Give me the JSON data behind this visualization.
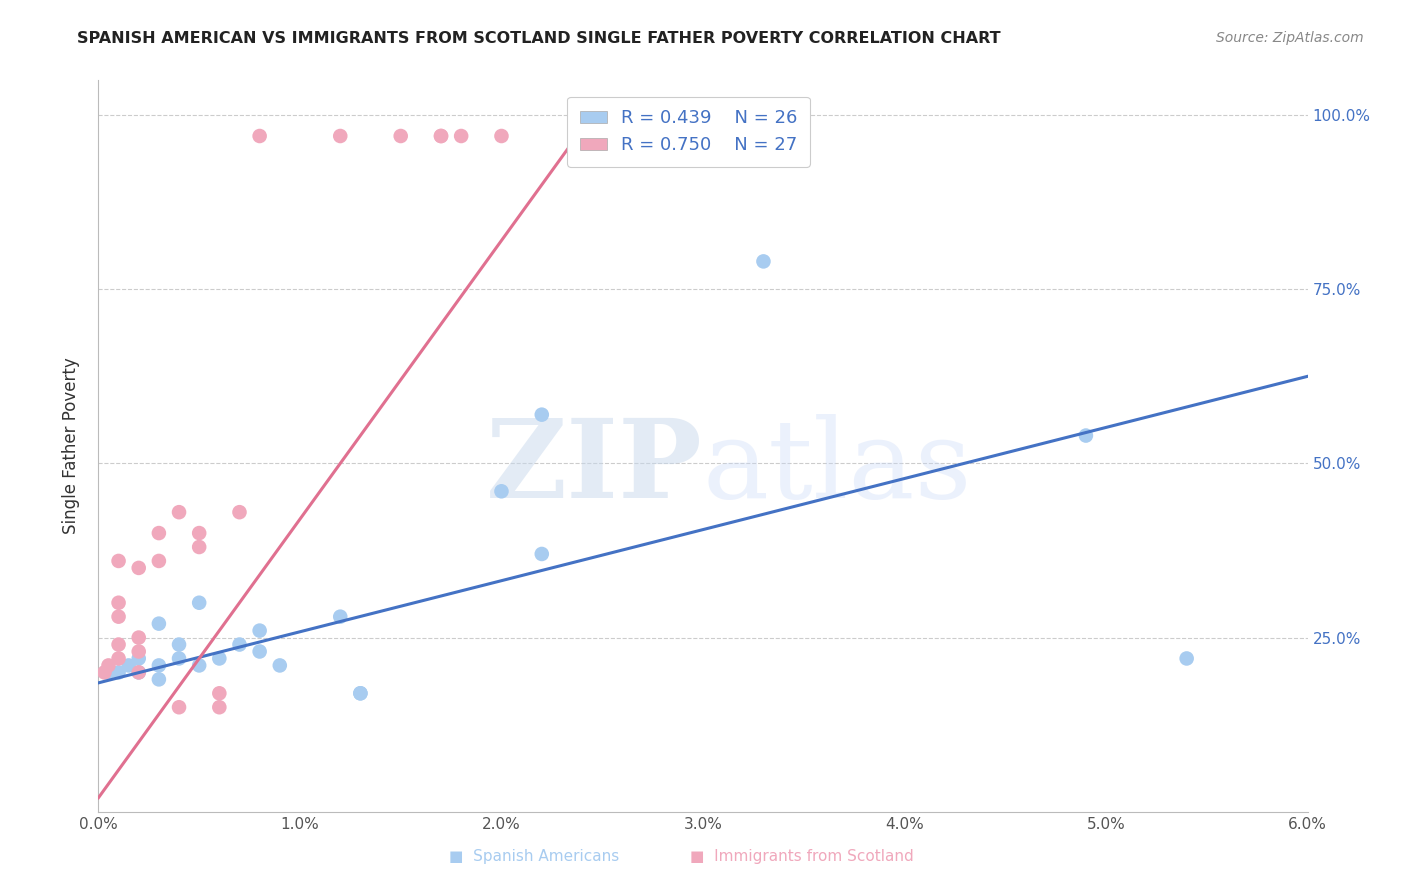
{
  "title": "SPANISH AMERICAN VS IMMIGRANTS FROM SCOTLAND SINGLE FATHER POVERTY CORRELATION CHART",
  "source": "Source: ZipAtlas.com",
  "ylabel": "Single Father Poverty",
  "xlim": [
    0.0,
    0.06
  ],
  "ylim": [
    0.0,
    1.05
  ],
  "xticks": [
    0.0,
    0.01,
    0.02,
    0.03,
    0.04,
    0.05,
    0.06
  ],
  "xticklabels": [
    "0.0%",
    "1.0%",
    "2.0%",
    "3.0%",
    "4.0%",
    "5.0%",
    "6.0%"
  ],
  "yticks": [
    0.0,
    0.25,
    0.5,
    0.75,
    1.0
  ],
  "yticklabels": [
    "",
    "25.0%",
    "50.0%",
    "75.0%",
    "100.0%"
  ],
  "blue_R": 0.439,
  "blue_N": 26,
  "pink_R": 0.75,
  "pink_N": 27,
  "blue_color": "#A8CCF0",
  "pink_color": "#F0A8BC",
  "blue_line_color": "#4472C4",
  "pink_line_color": "#E07090",
  "watermark_zip": "ZIP",
  "watermark_atlas": "atlas",
  "blue_points_x": [
    0.0005,
    0.001,
    0.0015,
    0.002,
    0.002,
    0.003,
    0.003,
    0.003,
    0.004,
    0.004,
    0.005,
    0.005,
    0.006,
    0.007,
    0.008,
    0.008,
    0.009,
    0.012,
    0.013,
    0.013,
    0.02,
    0.022,
    0.033,
    0.049,
    0.054,
    0.022
  ],
  "blue_points_y": [
    0.2,
    0.2,
    0.21,
    0.2,
    0.22,
    0.19,
    0.21,
    0.27,
    0.22,
    0.24,
    0.21,
    0.3,
    0.22,
    0.24,
    0.23,
    0.26,
    0.21,
    0.28,
    0.17,
    0.17,
    0.46,
    0.57,
    0.79,
    0.54,
    0.22,
    0.37
  ],
  "pink_points_x": [
    0.0003,
    0.0005,
    0.001,
    0.001,
    0.001,
    0.001,
    0.001,
    0.002,
    0.002,
    0.002,
    0.002,
    0.003,
    0.003,
    0.004,
    0.004,
    0.005,
    0.005,
    0.006,
    0.006,
    0.007,
    0.008,
    0.012,
    0.015,
    0.017,
    0.017,
    0.018,
    0.02
  ],
  "pink_points_y": [
    0.2,
    0.21,
    0.22,
    0.24,
    0.28,
    0.3,
    0.36,
    0.2,
    0.23,
    0.25,
    0.35,
    0.36,
    0.4,
    0.15,
    0.43,
    0.38,
    0.4,
    0.17,
    0.15,
    0.43,
    0.97,
    0.97,
    0.97,
    0.97,
    0.97,
    0.97,
    0.97
  ],
  "blue_line_x": [
    0.0,
    0.06
  ],
  "blue_line_y": [
    0.185,
    0.625
  ],
  "pink_line_x": [
    0.0,
    0.025
  ],
  "pink_line_y": [
    0.02,
    1.02
  ]
}
